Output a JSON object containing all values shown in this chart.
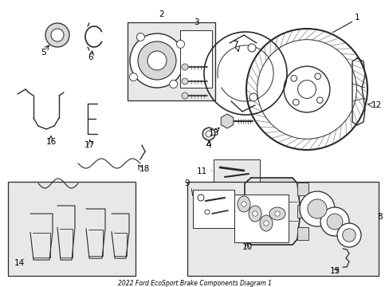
{
  "title": "2022 Ford EcoSport Brake Components Diagram 1",
  "bg_color": "#ffffff",
  "lc": "#2a2a2a",
  "box_fill": "#e8e8e8",
  "white": "#ffffff",
  "gray1": "#c8c8c8",
  "gray2": "#d8d8d8",
  "figsize": [
    4.89,
    3.6
  ],
  "dpi": 100,
  "xlim": [
    0,
    489
  ],
  "ylim": [
    0,
    360
  ]
}
